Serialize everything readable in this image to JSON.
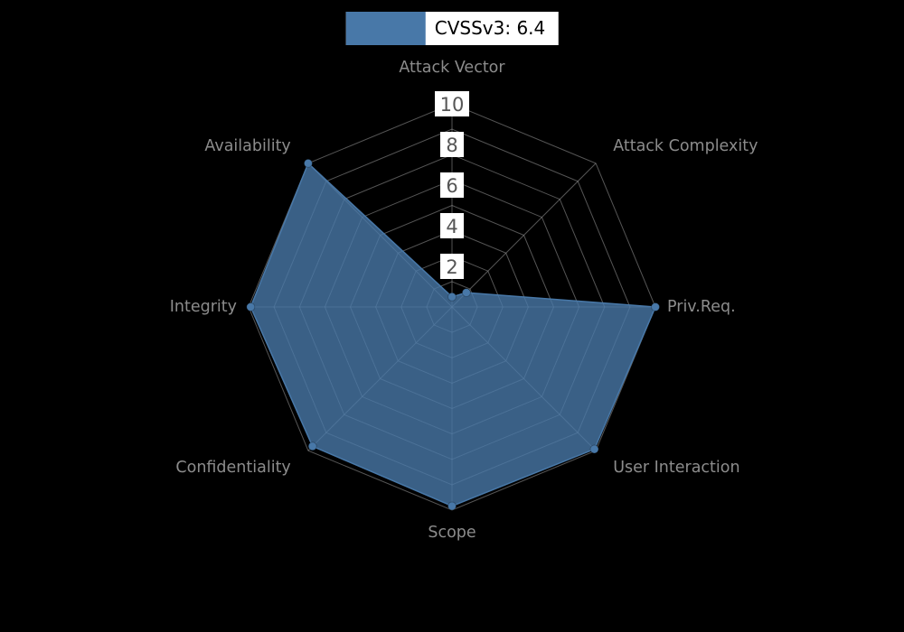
{
  "chart_data": {
    "type": "radar",
    "title": "CVSSv3: 6.4",
    "legend": {
      "label": "CVSSv3: 6.4",
      "swatch_color": "#4878a8"
    },
    "axes": [
      "Attack Vector",
      "Attack Complexity",
      "Priv.Req.",
      "User Interaction",
      "Scope",
      "Confidentiality",
      "Integrity",
      "Availability"
    ],
    "series": [
      {
        "name": "CVSSv3: 6.4",
        "values": [
          0.5,
          1.0,
          10,
          9.9,
          9.8,
          9.7,
          9.9,
          10
        ],
        "color": "#4878a8",
        "fill_opacity": 0.8
      }
    ],
    "ticks": [
      2,
      4,
      6,
      8,
      10
    ],
    "rmax": 10,
    "grid_rings": 8,
    "legend_position": "top-center",
    "colors": {
      "background": "#000000",
      "grid": "#9a9a9a",
      "axis_label": "#8c8c8c",
      "tick_text": "#555555",
      "tick_bg": "#ffffff"
    }
  }
}
